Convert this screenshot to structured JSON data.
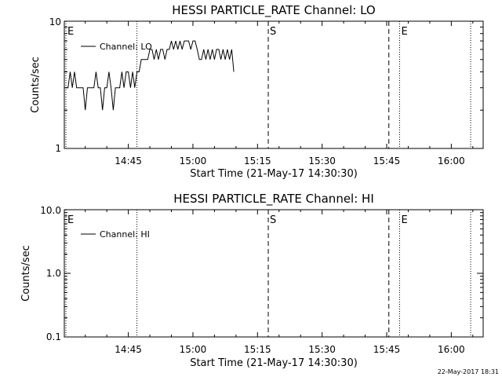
{
  "footer_timestamp": "22-May-2017 18:31",
  "chart_data": [
    {
      "type": "line",
      "title": "HESSI PARTICLE_RATE Channel: LO",
      "xlabel": "Start Time (21-May-17 14:30:30)",
      "ylabel": "Counts/sec",
      "xlim": [
        "14:30:30",
        "16:10"
      ],
      "ylim": [
        1,
        10
      ],
      "yscale": "log",
      "grid": false,
      "legend_position": "top-left",
      "xticks": [
        "14:45",
        "15:00",
        "15:15",
        "15:30",
        "15:45",
        "16:00"
      ],
      "yticks": [
        "1",
        "10"
      ],
      "series": [
        {
          "name": "Channel: LO",
          "x_minutes": [
            0,
            0.5,
            1,
            1.5,
            2,
            2.5,
            3,
            3.5,
            4,
            4.5,
            5,
            5.5,
            6,
            6.5,
            7,
            7.5,
            8,
            8.5,
            9,
            9.5,
            10,
            10.5,
            11,
            11.5,
            12,
            12.5,
            13,
            13.5,
            14,
            14.5,
            15,
            15.5,
            16,
            16.5,
            17,
            17.5,
            18,
            18.5,
            19,
            19.5,
            20,
            20.5,
            21,
            21.5,
            22,
            22.5,
            23,
            23.5,
            24,
            24.5,
            25,
            25.5,
            26,
            26.5,
            27,
            27.5,
            28,
            28.5,
            29,
            29.5,
            30,
            30.5,
            31,
            31.5,
            32,
            32.5,
            33,
            33.5,
            34,
            34.5,
            35,
            35.5,
            36,
            36.5,
            37,
            37.5,
            38,
            38.5,
            39
          ],
          "y": [
            3,
            3,
            4,
            3,
            4,
            3,
            3,
            3,
            3,
            2,
            3,
            3,
            3,
            3,
            4,
            3,
            3,
            2,
            3,
            3,
            4,
            3,
            2,
            3,
            3,
            3,
            4,
            3,
            4,
            4,
            3,
            4,
            3,
            4,
            4,
            5,
            5,
            5,
            5,
            6,
            6,
            5,
            6,
            5,
            6,
            6,
            5,
            6,
            6,
            7,
            6,
            7,
            6,
            7,
            6,
            7,
            7,
            7,
            6,
            7,
            7,
            6,
            5,
            5,
            6,
            5,
            6,
            5,
            6,
            5,
            6,
            6,
            5,
            6,
            5,
            6,
            5,
            6,
            4
          ]
        }
      ],
      "markers": [
        {
          "label": "E",
          "minute": 0,
          "style": "dotted"
        },
        {
          "label": "",
          "minute": 16.5,
          "style": "dotted"
        },
        {
          "label": "S",
          "minute": 47,
          "style": "dashed"
        },
        {
          "label": "",
          "minute": 75,
          "style": "dashed"
        },
        {
          "label": "E",
          "minute": 77.5,
          "style": "dotted"
        },
        {
          "label": "",
          "minute": 94,
          "style": "dotted"
        }
      ]
    },
    {
      "type": "line",
      "title": "HESSI PARTICLE_RATE Channel: HI",
      "xlabel": "Start Time (21-May-17 14:30:30)",
      "ylabel": "Counts/sec",
      "xlim": [
        "14:30:30",
        "16:10"
      ],
      "ylim": [
        0.1,
        10
      ],
      "yscale": "log",
      "grid": false,
      "legend_position": "top-left",
      "xticks": [
        "14:45",
        "15:00",
        "15:15",
        "15:30",
        "15:45",
        "16:00"
      ],
      "yticks": [
        "0.1",
        "1.0",
        "10.0"
      ],
      "series": [
        {
          "name": "Channel: HI",
          "x_minutes": [],
          "y": []
        }
      ],
      "markers": [
        {
          "label": "E",
          "minute": 0,
          "style": "dotted"
        },
        {
          "label": "",
          "minute": 16.5,
          "style": "dotted"
        },
        {
          "label": "S",
          "minute": 47,
          "style": "dashed"
        },
        {
          "label": "",
          "minute": 75,
          "style": "dashed"
        },
        {
          "label": "E",
          "minute": 77.5,
          "style": "dotted"
        },
        {
          "label": "",
          "minute": 94,
          "style": "dotted"
        }
      ]
    }
  ]
}
